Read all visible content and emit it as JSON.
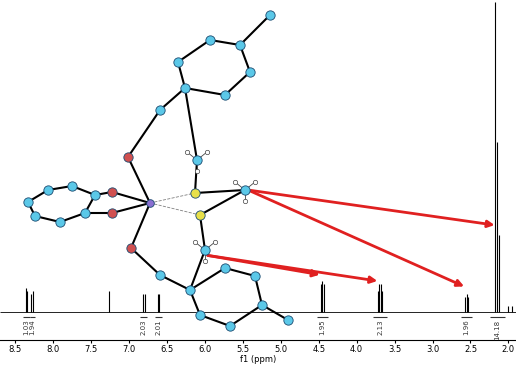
{
  "chart_data": {
    "type": "spectrum",
    "xlabel": "f1 (ppm)",
    "xlim": [
      8.7,
      1.9
    ],
    "xticks": [
      8.5,
      8.0,
      7.5,
      7.0,
      6.5,
      6.0,
      5.5,
      5.0,
      4.5,
      4.0,
      3.5,
      3.0,
      2.5,
      2.0
    ],
    "ylim": [
      -9,
      100
    ],
    "tick_labels": "x",
    "color": "#000000",
    "peaks": {
      "x": [
        8.36,
        8.34,
        8.29,
        8.27,
        7.26,
        6.81,
        6.79,
        6.62,
        6.6,
        4.47,
        4.45,
        4.43,
        3.72,
        3.7,
        3.68,
        3.66,
        2.57,
        2.55,
        2.53,
        2.18,
        2.15,
        2.13,
        2.0,
        1.95
      ],
      "values": [
        8,
        7,
        6,
        7,
        7,
        6,
        6,
        6,
        6,
        9,
        10,
        9,
        7,
        9,
        9,
        7,
        5,
        6,
        5,
        100,
        55,
        25,
        2,
        2
      ]
    },
    "integrals": [
      {
        "from": 8.4,
        "to": 8.31,
        "label": "1.03"
      },
      {
        "from": 8.31,
        "to": 8.24,
        "label": "1.94"
      },
      {
        "from": 6.85,
        "to": 6.76,
        "label": "2.03"
      },
      {
        "from": 6.66,
        "to": 6.57,
        "label": "2.01"
      },
      {
        "from": 4.52,
        "to": 4.38,
        "label": "1.95"
      },
      {
        "from": 3.78,
        "to": 3.6,
        "label": "2.13"
      },
      {
        "from": 2.62,
        "to": 2.48,
        "label": "1.96"
      },
      {
        "from": 2.24,
        "to": 2.05,
        "label": "14.18"
      }
    ]
  }
}
